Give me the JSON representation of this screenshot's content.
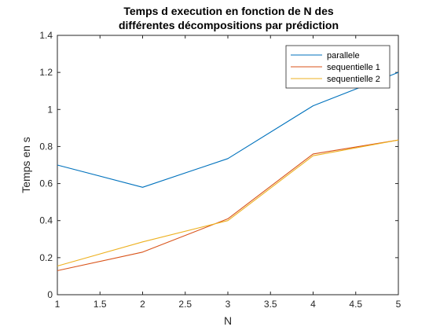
{
  "chart_data": {
    "type": "line",
    "title": [
      "Temps d execution en fonction de N des",
      "différentes décompositions par prédiction"
    ],
    "xlabel": "N",
    "ylabel": "Temps en s",
    "x": [
      1,
      2,
      3,
      4,
      5
    ],
    "xlim": [
      1,
      5
    ],
    "ylim": [
      0,
      1.4
    ],
    "xticks": [
      1,
      1.5,
      2,
      2.5,
      3,
      3.5,
      4,
      4.5,
      5
    ],
    "xtick_labels": [
      "1",
      "1.5",
      "2",
      "2.5",
      "3",
      "3.5",
      "4",
      "4.5",
      "5"
    ],
    "yticks": [
      0,
      0.2,
      0.4,
      0.6,
      0.8,
      1,
      1.2,
      1.4
    ],
    "ytick_labels": [
      "0",
      "0.2",
      "0.4",
      "0.6",
      "0.8",
      "1",
      "1.2",
      "1.4"
    ],
    "grid": false,
    "legend_position": "top-right",
    "series": [
      {
        "name": "parallele",
        "color": "#0072BD",
        "values": [
          0.7,
          0.58,
          0.735,
          1.02,
          1.2
        ]
      },
      {
        "name": "sequentielle 1",
        "color": "#D95319",
        "values": [
          0.13,
          0.23,
          0.41,
          0.76,
          0.835
        ]
      },
      {
        "name": "sequentielle 2",
        "color": "#EDB120",
        "values": [
          0.155,
          0.285,
          0.4,
          0.75,
          0.835
        ]
      }
    ]
  }
}
